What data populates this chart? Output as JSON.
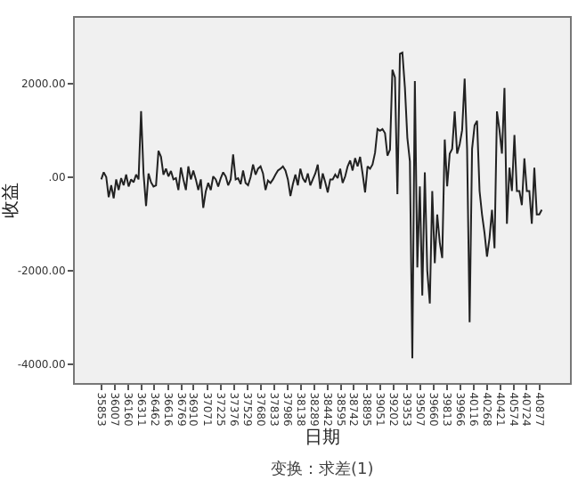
{
  "chart_data": {
    "type": "line",
    "xlabel": "日期",
    "ylabel": "收益",
    "annotations": [
      "变换：求差(1)"
    ],
    "x": [
      35853,
      35881,
      35910,
      35938,
      35967,
      35995,
      36024,
      36052,
      36081,
      36109,
      36138,
      36166,
      36195,
      36223,
      36252,
      36280,
      36309,
      36337,
      36366,
      36394,
      36423,
      36451,
      36480,
      36508,
      36537,
      36565,
      36594,
      36622,
      36651,
      36679,
      36708,
      36736,
      36765,
      36793,
      36822,
      36850,
      36879,
      36907,
      36936,
      36964,
      36993,
      37021,
      37050,
      37078,
      37107,
      37135,
      37164,
      37192,
      37221,
      37249,
      37278,
      37306,
      37335,
      37363,
      37392,
      37420,
      37449,
      37477,
      37506,
      37534,
      37563,
      37591,
      37620,
      37648,
      37677,
      37705,
      37734,
      37762,
      37791,
      37819,
      37848,
      37876,
      37905,
      37933,
      37962,
      37990,
      38019,
      38047,
      38076,
      38104,
      38133,
      38161,
      38190,
      38218,
      38247,
      38275,
      38304,
      38332,
      38361,
      38389,
      38418,
      38446,
      38475,
      38503,
      38532,
      38560,
      38589,
      38617,
      38646,
      38674,
      38703,
      38731,
      38760,
      38788,
      38817,
      38845,
      38874,
      38902,
      38931,
      38959,
      38988,
      39016,
      39045,
      39073,
      39102,
      39130,
      39159,
      39187,
      39216,
      39244,
      39273,
      39301,
      39330,
      39358,
      39387,
      39415,
      39444,
      39472,
      39501,
      39529,
      39558,
      39586,
      39615,
      39643,
      39672,
      39700,
      39729,
      39757,
      39786,
      39814,
      39843,
      39871,
      39900,
      39928,
      39957,
      39985,
      40014,
      40042,
      40071,
      40099,
      40128,
      40156,
      40185,
      40213,
      40242,
      40270,
      40299,
      40327,
      40356,
      40384,
      40413,
      40441,
      40470,
      40498,
      40527,
      40555,
      40584,
      40612,
      40641,
      40669,
      40698,
      40726,
      40755,
      40783,
      40812,
      40840,
      40869,
      40897
    ],
    "series": [
      {
        "color": "#222222",
        "values": [
          -51,
          101,
          0,
          -430,
          -177,
          -456,
          -51,
          -278,
          -25,
          -177,
          51,
          -203,
          -51,
          -114,
          51,
          -51,
          1405,
          76,
          -620,
          76,
          -114,
          -203,
          -177,
          557,
          430,
          51,
          177,
          13,
          127,
          -51,
          -25,
          -278,
          203,
          -51,
          -278,
          228,
          -51,
          139,
          -51,
          -278,
          -51,
          -658,
          -304,
          -127,
          -278,
          13,
          -51,
          -203,
          -25,
          101,
          13,
          -177,
          -51,
          481,
          -51,
          -25,
          -152,
          139,
          -127,
          -177,
          0,
          266,
          51,
          177,
          228,
          76,
          -278,
          -76,
          -127,
          -51,
          51,
          139,
          177,
          228,
          139,
          -51,
          -405,
          -152,
          51,
          -177,
          177,
          -25,
          -114,
          76,
          -177,
          -51,
          76,
          266,
          -253,
          76,
          -114,
          -329,
          -51,
          -51,
          51,
          -25,
          177,
          -127,
          13,
          228,
          354,
          139,
          405,
          228,
          430,
          76,
          -329,
          228,
          177,
          266,
          519,
          1025,
          987,
          1025,
          937,
          456,
          582,
          2291,
          2127,
          -367,
          2633,
          2658,
          1912,
          835,
          329,
          -3870,
          2050,
          -1930,
          -200,
          -2530,
          100,
          -2000,
          -2700,
          -300,
          -1840,
          -800,
          -1400,
          -1730,
          800,
          -200,
          500,
          600,
          1400,
          500,
          700,
          1000,
          2100,
          600,
          -3100,
          600,
          1100,
          1200,
          -300,
          -800,
          -1200,
          -1700,
          -1300,
          -700,
          -1520,
          1400,
          1000,
          500,
          1900,
          -1000,
          200,
          -300,
          900,
          -300,
          -300,
          -600,
          400,
          -300,
          -300,
          -1000,
          200,
          -800,
          -800,
          -700
        ]
      }
    ],
    "xlim": [
      35550,
      41220
    ],
    "xticks": [
      35853,
      36007,
      36160,
      36311,
      36462,
      36616,
      36769,
      36910,
      37071,
      37225,
      37376,
      37529,
      37680,
      37833,
      37986,
      38138,
      38289,
      38442,
      38595,
      38742,
      38895,
      39051,
      39202,
      39353,
      39507,
      39660,
      39813,
      39966,
      40116,
      40268,
      40421,
      40574,
      40724,
      40877
    ],
    "ylim": [
      -4400,
      3400
    ],
    "yticks": [
      {
        "value": 2000,
        "label": "2000.00"
      },
      {
        "value": 0,
        "label": ".00"
      },
      {
        "value": -2000,
        "label": "-2000.00"
      },
      {
        "value": -4000,
        "label": "-4000.00"
      }
    ],
    "grid": false,
    "legend": false,
    "marker": "none",
    "line_style": "solid"
  }
}
